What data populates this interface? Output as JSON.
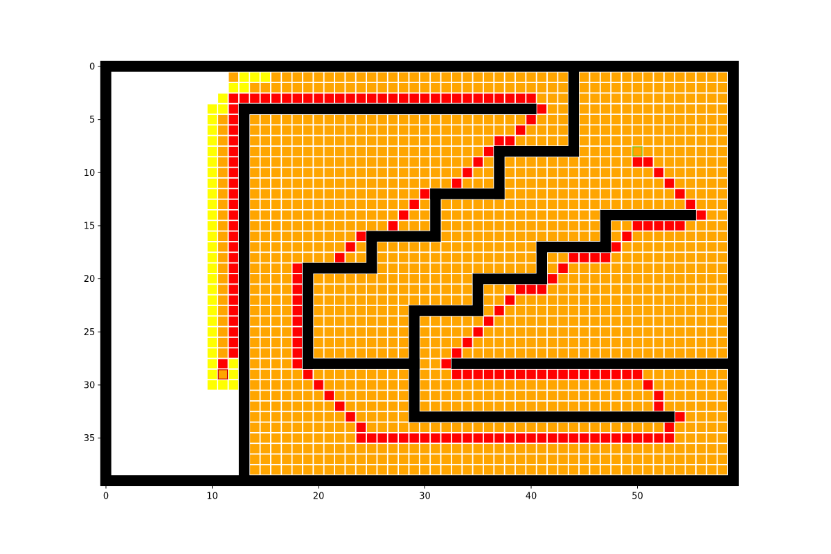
{
  "colors": {
    "background": "#ffffff",
    "wall": "#000000",
    "explored": "#ffa500",
    "frontier": "#ffff00",
    "path": "#ff0000",
    "start_fill": "#ffa500",
    "start_border": "#cc0000",
    "goal_fill": "#ffa500",
    "goal_border": "#7fbf00",
    "cell_edge": "#ffffff"
  },
  "grid": {
    "rows": 40,
    "cols": 60
  },
  "axes": {
    "x_ticks": [
      "0",
      "10",
      "20",
      "30",
      "40",
      "50"
    ],
    "y_ticks": [
      "0",
      "5",
      "10",
      "15",
      "20",
      "25",
      "30",
      "35"
    ]
  },
  "maze": {
    "walls": [
      {
        "axis": "h",
        "at": 0,
        "from": 0,
        "to": 59
      },
      {
        "axis": "h",
        "at": 39,
        "from": 0,
        "to": 59
      },
      {
        "axis": "v",
        "at": 0,
        "from": 0,
        "to": 39
      },
      {
        "axis": "v",
        "at": 59,
        "from": 0,
        "to": 39
      },
      {
        "axis": "v",
        "at": 13,
        "from": 4,
        "to": 39
      },
      {
        "axis": "h",
        "at": 4,
        "from": 13,
        "to": 40
      },
      {
        "axis": "v",
        "at": 44,
        "from": 0,
        "to": 8
      },
      {
        "axis": "h",
        "at": 8,
        "from": 37,
        "to": 44
      },
      {
        "axis": "v",
        "at": 37,
        "from": 8,
        "to": 12
      },
      {
        "axis": "h",
        "at": 12,
        "from": 31,
        "to": 37
      },
      {
        "axis": "v",
        "at": 31,
        "from": 12,
        "to": 16
      },
      {
        "axis": "h",
        "at": 16,
        "from": 25,
        "to": 31
      },
      {
        "axis": "v",
        "at": 25,
        "from": 16,
        "to": 19
      },
      {
        "axis": "h",
        "at": 19,
        "from": 19,
        "to": 25
      },
      {
        "axis": "v",
        "at": 19,
        "from": 19,
        "to": 28
      },
      {
        "axis": "h",
        "at": 28,
        "from": 19,
        "to": 29
      },
      {
        "axis": "v",
        "at": 29,
        "from": 23,
        "to": 33
      },
      {
        "axis": "h",
        "at": 23,
        "from": 29,
        "to": 35
      },
      {
        "axis": "v",
        "at": 35,
        "from": 20,
        "to": 23
      },
      {
        "axis": "h",
        "at": 20,
        "from": 35,
        "to": 41
      },
      {
        "axis": "v",
        "at": 41,
        "from": 17,
        "to": 20
      },
      {
        "axis": "h",
        "at": 17,
        "from": 41,
        "to": 47
      },
      {
        "axis": "v",
        "at": 47,
        "from": 14,
        "to": 17
      },
      {
        "axis": "h",
        "at": 14,
        "from": 47,
        "to": 55
      },
      {
        "axis": "h",
        "at": 28,
        "from": 33,
        "to": 59
      },
      {
        "axis": "h",
        "at": 33,
        "from": 29,
        "to": 53
      }
    ],
    "frontier_cells": [
      [
        1,
        13
      ],
      [
        1,
        14
      ],
      [
        1,
        15
      ],
      [
        2,
        12
      ],
      [
        2,
        13
      ],
      [
        3,
        11
      ],
      [
        3,
        12
      ],
      [
        4,
        10
      ],
      [
        4,
        11
      ],
      [
        5,
        10
      ],
      [
        6,
        10
      ],
      [
        7,
        10
      ],
      [
        8,
        10
      ],
      [
        9,
        10
      ],
      [
        10,
        10
      ],
      [
        11,
        10
      ],
      [
        12,
        10
      ],
      [
        13,
        10
      ],
      [
        14,
        10
      ],
      [
        15,
        10
      ],
      [
        16,
        10
      ],
      [
        17,
        10
      ],
      [
        18,
        10
      ],
      [
        19,
        10
      ],
      [
        20,
        10
      ],
      [
        21,
        10
      ],
      [
        22,
        10
      ],
      [
        23,
        10
      ],
      [
        24,
        10
      ],
      [
        25,
        10
      ],
      [
        26,
        10
      ],
      [
        27,
        10
      ],
      [
        28,
        10
      ],
      [
        29,
        10
      ],
      [
        30,
        10
      ],
      [
        30,
        11
      ],
      [
        30,
        12
      ],
      [
        28,
        12
      ],
      [
        29,
        12
      ]
    ],
    "yellow_column_left": {
      "col": 10,
      "from": 4,
      "to": 30
    },
    "path_cells": [
      [
        29,
        11
      ],
      [
        28,
        11
      ],
      [
        27,
        12
      ],
      [
        26,
        12
      ],
      [
        25,
        12
      ],
      [
        24,
        12
      ],
      [
        23,
        12
      ],
      [
        22,
        12
      ],
      [
        21,
        12
      ],
      [
        20,
        12
      ],
      [
        19,
        12
      ],
      [
        18,
        12
      ],
      [
        17,
        12
      ],
      [
        16,
        12
      ],
      [
        15,
        12
      ],
      [
        14,
        12
      ],
      [
        13,
        12
      ],
      [
        12,
        12
      ],
      [
        11,
        12
      ],
      [
        10,
        12
      ],
      [
        9,
        12
      ],
      [
        8,
        12
      ],
      [
        7,
        12
      ],
      [
        6,
        12
      ],
      [
        5,
        12
      ],
      [
        4,
        12
      ],
      [
        3,
        12
      ],
      [
        3,
        13
      ],
      [
        3,
        14
      ],
      [
        3,
        15
      ],
      [
        3,
        16
      ],
      [
        3,
        17
      ],
      [
        3,
        18
      ],
      [
        3,
        19
      ],
      [
        3,
        20
      ],
      [
        3,
        21
      ],
      [
        3,
        22
      ],
      [
        3,
        23
      ],
      [
        3,
        24
      ],
      [
        3,
        25
      ],
      [
        3,
        26
      ],
      [
        3,
        27
      ],
      [
        3,
        28
      ],
      [
        3,
        29
      ],
      [
        3,
        30
      ],
      [
        3,
        31
      ],
      [
        3,
        32
      ],
      [
        3,
        33
      ],
      [
        3,
        34
      ],
      [
        3,
        35
      ],
      [
        3,
        36
      ],
      [
        3,
        37
      ],
      [
        3,
        38
      ],
      [
        3,
        39
      ],
      [
        3,
        40
      ],
      [
        4,
        41
      ],
      [
        5,
        40
      ],
      [
        6,
        39
      ],
      [
        7,
        38
      ],
      [
        7,
        37
      ],
      [
        8,
        36
      ],
      [
        9,
        35
      ],
      [
        10,
        34
      ],
      [
        11,
        33
      ],
      [
        12,
        32
      ],
      [
        12,
        31
      ],
      [
        12,
        30
      ],
      [
        13,
        29
      ],
      [
        14,
        28
      ],
      [
        15,
        27
      ],
      [
        16,
        26
      ],
      [
        16,
        25
      ],
      [
        16,
        24
      ],
      [
        17,
        23
      ],
      [
        18,
        22
      ],
      [
        19,
        21
      ],
      [
        19,
        20
      ],
      [
        19,
        19
      ],
      [
        19,
        18
      ],
      [
        20,
        18
      ],
      [
        21,
        18
      ],
      [
        22,
        18
      ],
      [
        23,
        18
      ],
      [
        24,
        18
      ],
      [
        25,
        18
      ],
      [
        26,
        18
      ],
      [
        27,
        18
      ],
      [
        28,
        18
      ],
      [
        29,
        19
      ],
      [
        30,
        20
      ],
      [
        31,
        21
      ],
      [
        32,
        22
      ],
      [
        33,
        23
      ],
      [
        34,
        24
      ],
      [
        35,
        24
      ],
      [
        35,
        25
      ],
      [
        35,
        26
      ],
      [
        35,
        27
      ],
      [
        35,
        28
      ],
      [
        35,
        29
      ],
      [
        35,
        30
      ],
      [
        35,
        31
      ],
      [
        35,
        32
      ],
      [
        35,
        33
      ],
      [
        35,
        34
      ],
      [
        35,
        35
      ],
      [
        35,
        36
      ],
      [
        35,
        37
      ],
      [
        35,
        38
      ],
      [
        35,
        39
      ],
      [
        35,
        40
      ],
      [
        35,
        41
      ],
      [
        35,
        42
      ],
      [
        35,
        43
      ],
      [
        35,
        44
      ],
      [
        35,
        45
      ],
      [
        35,
        46
      ],
      [
        35,
        47
      ],
      [
        35,
        48
      ],
      [
        35,
        49
      ],
      [
        35,
        50
      ],
      [
        35,
        51
      ],
      [
        35,
        52
      ],
      [
        35,
        53
      ],
      [
        34,
        53
      ],
      [
        33,
        54
      ],
      [
        32,
        52
      ],
      [
        31,
        52
      ],
      [
        30,
        51
      ],
      [
        29,
        50
      ],
      [
        29,
        49
      ],
      [
        29,
        48
      ],
      [
        29,
        47
      ],
      [
        29,
        46
      ],
      [
        29,
        45
      ],
      [
        29,
        44
      ],
      [
        29,
        43
      ],
      [
        29,
        42
      ],
      [
        29,
        41
      ],
      [
        29,
        40
      ],
      [
        29,
        39
      ],
      [
        29,
        38
      ],
      [
        29,
        37
      ],
      [
        29,
        36
      ],
      [
        29,
        35
      ],
      [
        29,
        34
      ],
      [
        29,
        33
      ],
      [
        28,
        32
      ],
      [
        27,
        33
      ],
      [
        26,
        34
      ],
      [
        25,
        35
      ],
      [
        24,
        36
      ],
      [
        23,
        37
      ],
      [
        22,
        38
      ],
      [
        21,
        39
      ],
      [
        21,
        40
      ],
      [
        21,
        41
      ],
      [
        20,
        42
      ],
      [
        19,
        43
      ],
      [
        18,
        44
      ],
      [
        18,
        45
      ],
      [
        18,
        46
      ],
      [
        18,
        47
      ],
      [
        17,
        48
      ],
      [
        16,
        49
      ],
      [
        15,
        50
      ],
      [
        15,
        51
      ],
      [
        15,
        52
      ],
      [
        15,
        53
      ],
      [
        15,
        54
      ],
      [
        14,
        56
      ],
      [
        13,
        55
      ],
      [
        12,
        54
      ],
      [
        11,
        53
      ],
      [
        10,
        52
      ],
      [
        9,
        51
      ],
      [
        9,
        50
      ]
    ],
    "start": [
      29,
      11
    ],
    "goal": [
      8,
      50
    ]
  }
}
